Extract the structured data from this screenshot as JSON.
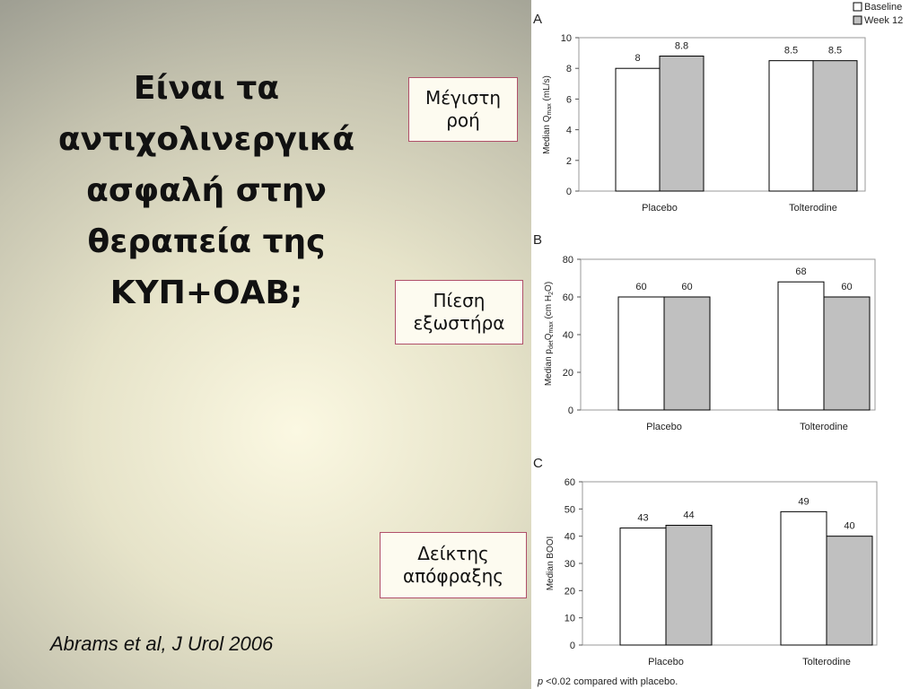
{
  "slide": {
    "title": "Είναι τα αντιχολινεργικά ασφαλή στην θεραπεία της ΚΥΠ+ΟΑΒ;",
    "citation": "Abrams et al, J Urol 2006",
    "callouts": [
      "Μέγιστη ροή",
      "Πίεση εξωστήρα",
      "Δείκτης απόφραξης"
    ]
  },
  "legend": {
    "entries": [
      "Baseline",
      "Week 12"
    ],
    "placement": "top-right"
  },
  "footnote": {
    "p": "p",
    "rest": " <0.02 compared with placebo."
  },
  "colors": {
    "baseline": "#ffffff",
    "week12": "#c0c0c0",
    "callout_border": "#b0506a"
  },
  "chart_data": [
    {
      "type": "bar",
      "panel": "A",
      "categories": [
        "Placebo",
        "Tolterodine"
      ],
      "series": [
        {
          "name": "Baseline",
          "values": [
            8,
            8.5
          ],
          "labels": [
            "8",
            "8.5"
          ]
        },
        {
          "name": "Week 12",
          "values": [
            8.8,
            8.5
          ],
          "labels": [
            "8.8",
            "8.5"
          ]
        }
      ],
      "ylabel": "Median Qmax (mL/s)",
      "ylim": [
        0,
        10
      ],
      "yticks": [
        0,
        2,
        4,
        6,
        8,
        10
      ]
    },
    {
      "type": "bar",
      "panel": "B",
      "categories": [
        "Placebo",
        "Tolterodine"
      ],
      "series": [
        {
          "name": "Baseline",
          "values": [
            60,
            68
          ],
          "labels": [
            "60",
            "68"
          ]
        },
        {
          "name": "Week 12",
          "values": [
            60,
            60
          ],
          "labels": [
            "60",
            "60"
          ]
        }
      ],
      "ylabel": "Median pdetQmax (cm H2O)",
      "ylim": [
        0,
        80
      ],
      "yticks": [
        0,
        20,
        40,
        60,
        80
      ]
    },
    {
      "type": "bar",
      "panel": "C",
      "categories": [
        "Placebo",
        "Tolterodine"
      ],
      "series": [
        {
          "name": "Baseline",
          "values": [
            43,
            49
          ],
          "labels": [
            "43",
            "49"
          ]
        },
        {
          "name": "Week 12",
          "values": [
            44,
            40
          ],
          "labels": [
            "44",
            "40"
          ]
        }
      ],
      "ylabel": "Median BOOI",
      "ylim": [
        0,
        60
      ],
      "yticks": [
        0,
        10,
        20,
        30,
        40,
        50,
        60
      ]
    }
  ]
}
